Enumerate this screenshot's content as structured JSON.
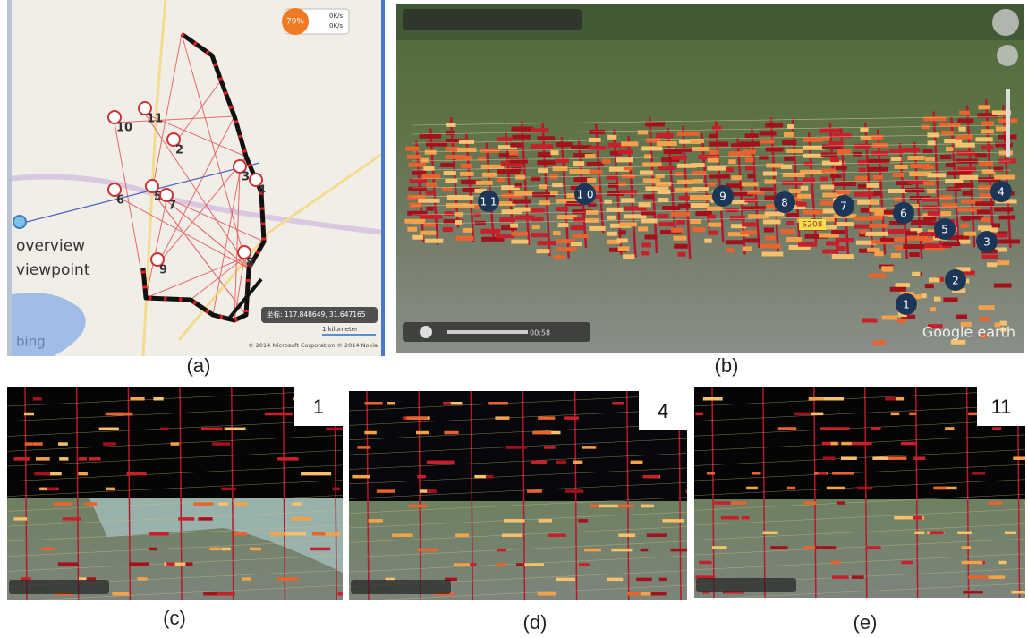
{
  "panel_a": {
    "caption": "(a)",
    "viewpoint_label": [
      "overview",
      "viewpoint"
    ],
    "markers": [
      "10",
      "11",
      "2",
      "3",
      "4",
      "6",
      "5",
      "7",
      "9",
      "8"
    ],
    "coordinates": "坐标: 117.848649, 31.647165",
    "scale": "1 kilometer",
    "copyright": "© 2014 Microsoft Corporation  © 2014 Nokia",
    "brand": "bing",
    "speed_percent": "79%",
    "speeds": [
      "0K/s",
      "0K/s"
    ]
  },
  "panel_b": {
    "caption": "(b)",
    "markers": [
      "1 1",
      "1 0",
      "9",
      "8",
      "7",
      "6",
      "4",
      "5",
      "3",
      "2",
      "1"
    ],
    "road": "S208",
    "time": "00:58",
    "brand": "Google earth"
  },
  "panel_c": {
    "caption": "(c)",
    "tag": "1"
  },
  "panel_d": {
    "caption": "(d)",
    "tag": "4"
  },
  "panel_e": {
    "caption": "(e)",
    "tag": "11"
  }
}
